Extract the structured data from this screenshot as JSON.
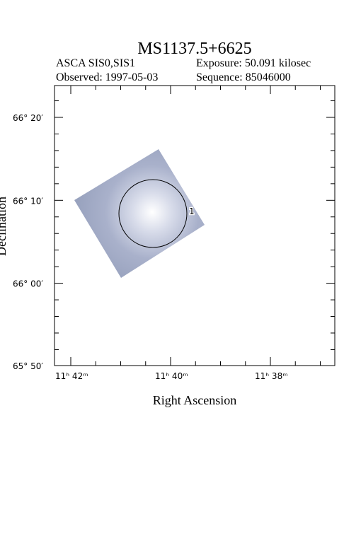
{
  "header": {
    "title": "MS1137.5+6625",
    "instrument": "ASCA SIS0,SIS1",
    "exposure": "Exposure: 50.091 kilosec",
    "observed": "Observed: 1997-05-03",
    "sequence": "Sequence: 85046000"
  },
  "plot": {
    "x_axis_label": "Right Ascension",
    "y_axis_label": "Declination",
    "x_tick_labels": [
      "11ʰ 42ᵐ",
      "11ʰ 40ᵐ",
      "11ʰ 38ᵐ"
    ],
    "y_tick_labels": [
      "66° 20′",
      "66° 10′",
      "66° 00′",
      "65° 50′"
    ],
    "region_label": "1"
  }
}
